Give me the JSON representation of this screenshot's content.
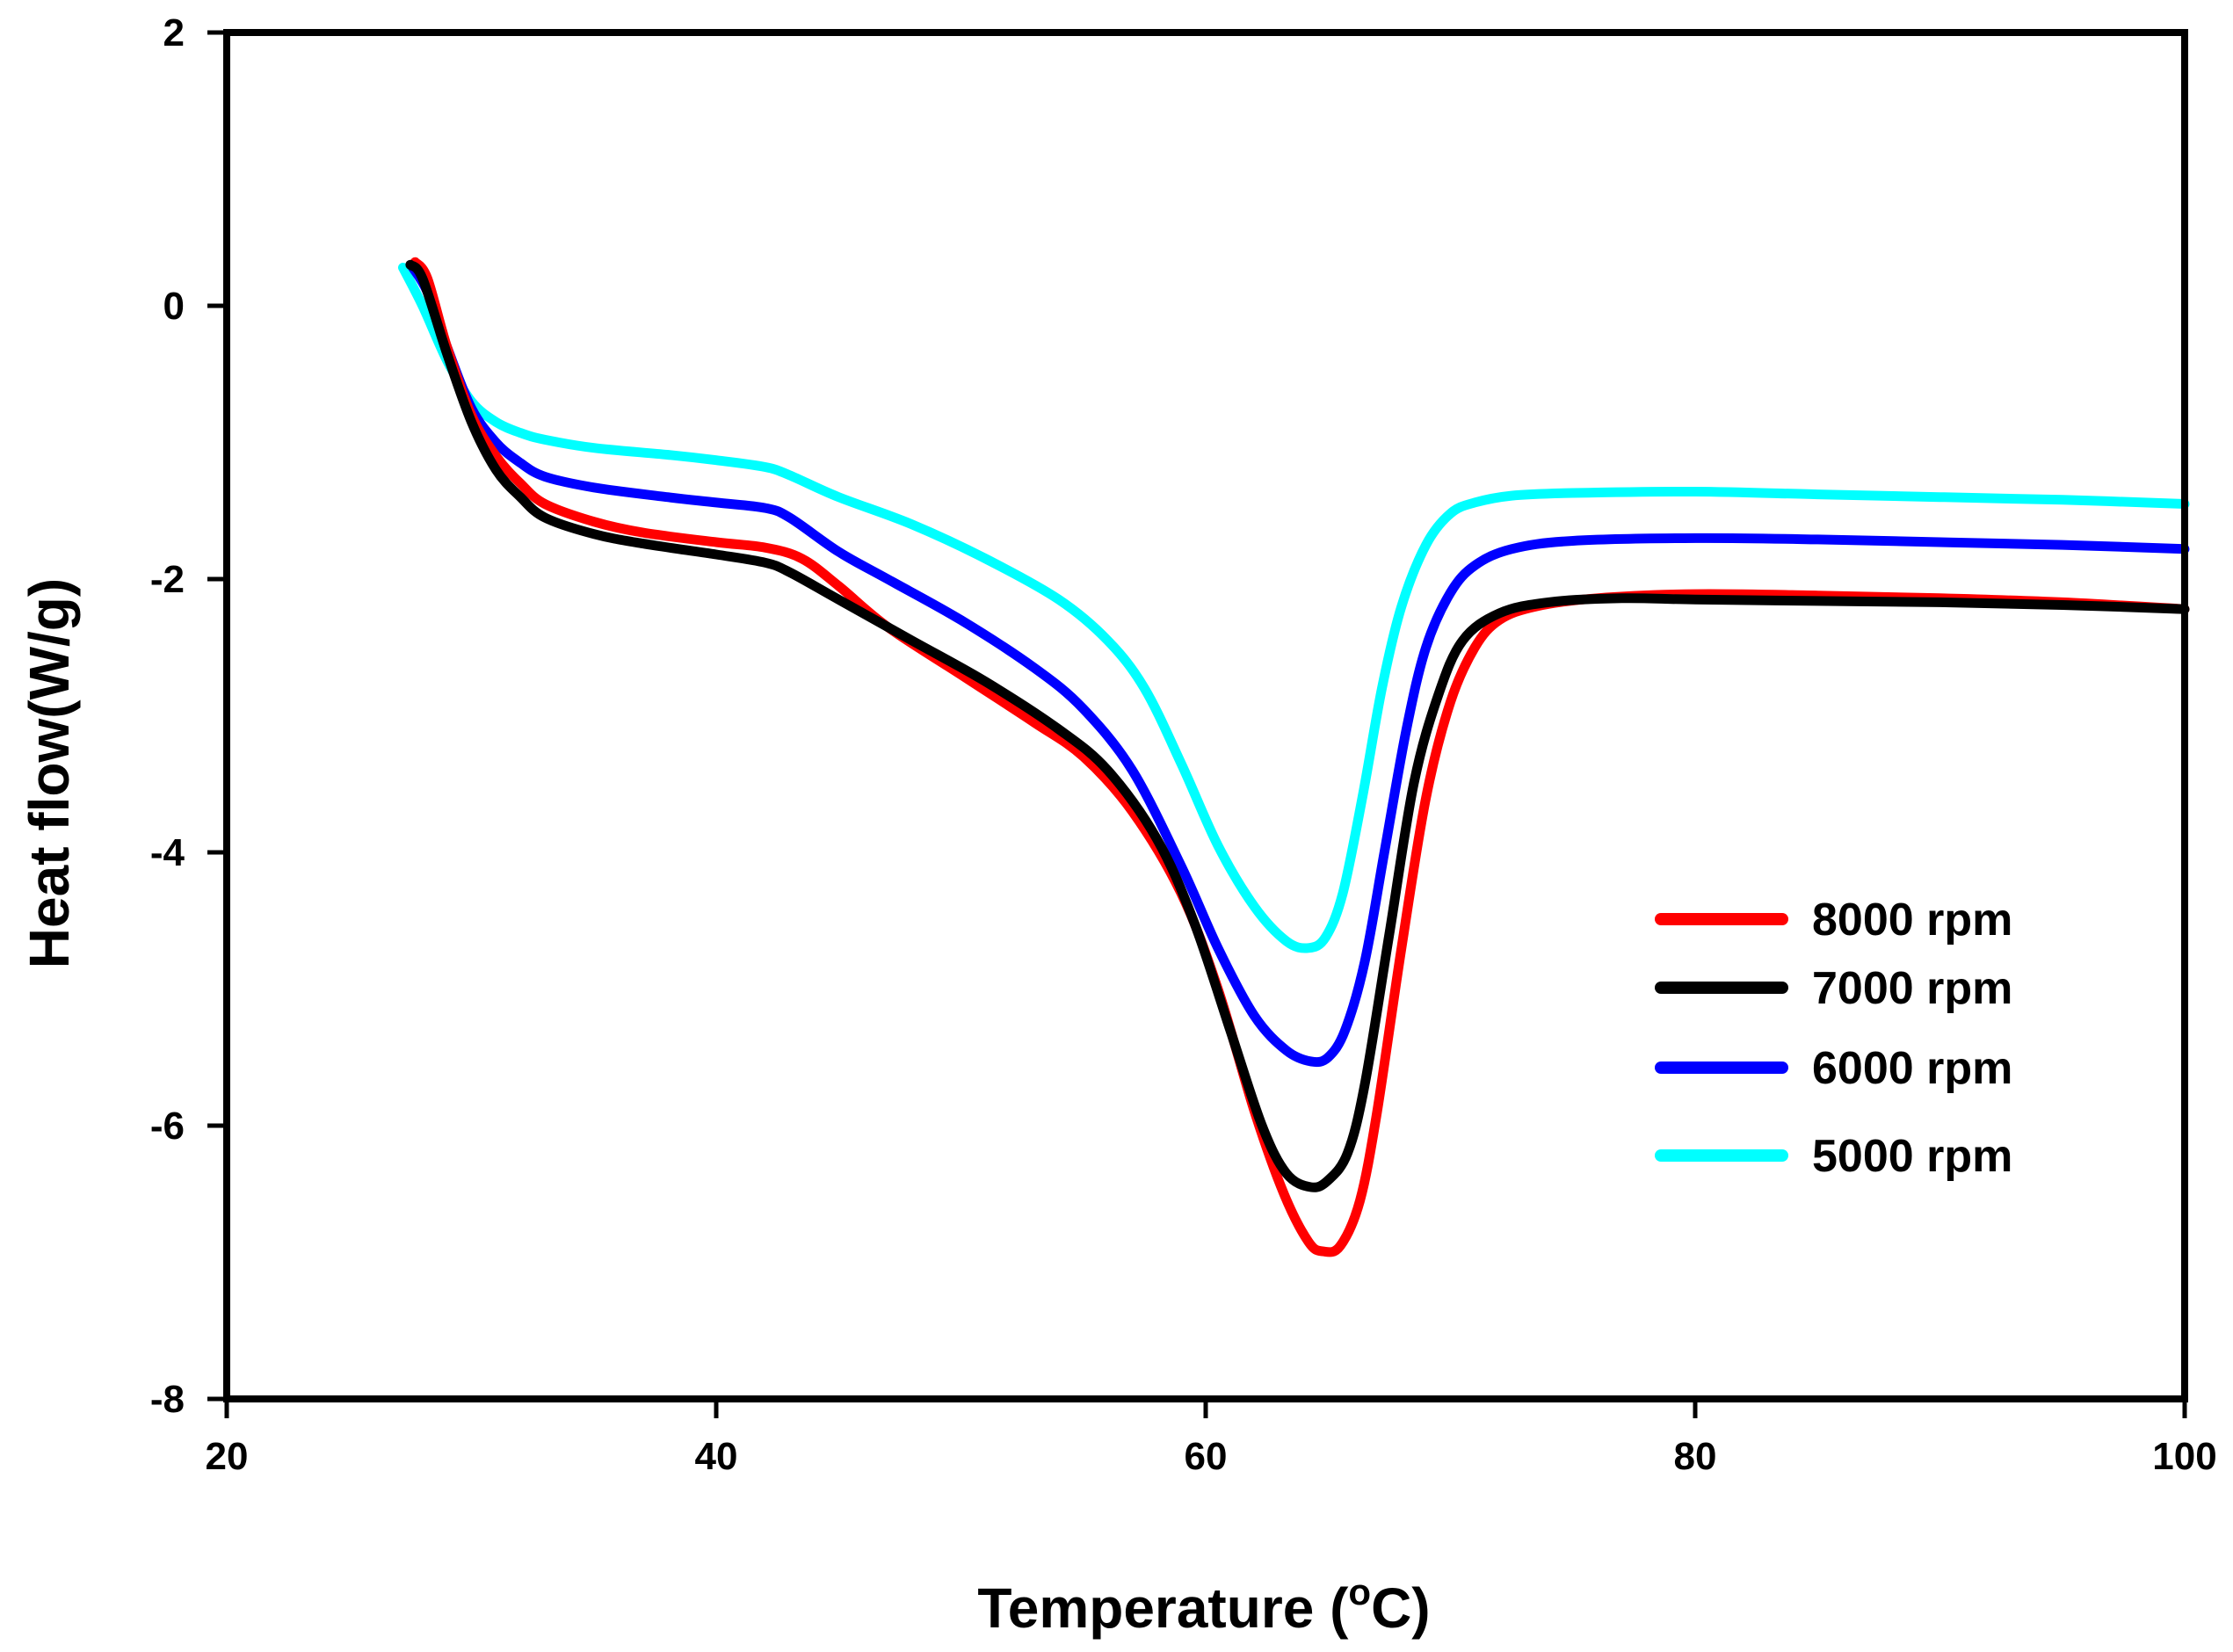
{
  "chart_data": {
    "type": "line",
    "title": "",
    "xlabel": "Temperature (",
    "xlabel_superscript": "o",
    "xlabel_suffix": "C)",
    "ylabel": "Heat flow(W/g)",
    "xlim": [
      20,
      100
    ],
    "ylim": [
      -8,
      2
    ],
    "xticks": [
      20,
      40,
      60,
      80,
      100
    ],
    "xtick_labels": [
      "20",
      "40",
      "60",
      "80",
      "100"
    ],
    "yticks": [
      -8,
      -6,
      -4,
      -2,
      0,
      2
    ],
    "ytick_labels": [
      "-8",
      "-6",
      "-4",
      "-2",
      "0",
      "2"
    ],
    "grid": false,
    "legend_position": "right-lower",
    "series": [
      {
        "name": "8000 rpm",
        "color": "#ff0000",
        "points": [
          [
            27.7,
            0.32
          ],
          [
            28.2,
            0.2
          ],
          [
            29,
            -0.3
          ],
          [
            30,
            -0.8
          ],
          [
            31,
            -1.1
          ],
          [
            32,
            -1.3
          ],
          [
            33,
            -1.45
          ],
          [
            35,
            -1.58
          ],
          [
            37,
            -1.66
          ],
          [
            40,
            -1.73
          ],
          [
            42,
            -1.77
          ],
          [
            43.5,
            -1.85
          ],
          [
            45,
            -2.05
          ],
          [
            47,
            -2.35
          ],
          [
            50,
            -2.7
          ],
          [
            53,
            -3.05
          ],
          [
            55,
            -3.3
          ],
          [
            57,
            -3.7
          ],
          [
            59,
            -4.3
          ],
          [
            60.5,
            -5.0
          ],
          [
            62,
            -5.9
          ],
          [
            63.2,
            -6.5
          ],
          [
            64.2,
            -6.85
          ],
          [
            64.8,
            -6.92
          ],
          [
            65.5,
            -6.88
          ],
          [
            66.3,
            -6.55
          ],
          [
            67,
            -5.9
          ],
          [
            68,
            -4.7
          ],
          [
            69,
            -3.6
          ],
          [
            70,
            -2.9
          ],
          [
            71,
            -2.5
          ],
          [
            72,
            -2.3
          ],
          [
            73.5,
            -2.2
          ],
          [
            76,
            -2.14
          ],
          [
            80,
            -2.11
          ],
          [
            85,
            -2.12
          ],
          [
            90,
            -2.14
          ],
          [
            95,
            -2.17
          ],
          [
            100,
            -2.22
          ]
        ]
      },
      {
        "name": "7000 rpm",
        "color": "#000000",
        "points": [
          [
            27.5,
            0.3
          ],
          [
            28,
            0.2
          ],
          [
            29,
            -0.35
          ],
          [
            30,
            -0.85
          ],
          [
            31,
            -1.2
          ],
          [
            32,
            -1.4
          ],
          [
            33,
            -1.55
          ],
          [
            35,
            -1.67
          ],
          [
            37,
            -1.74
          ],
          [
            40,
            -1.82
          ],
          [
            42,
            -1.88
          ],
          [
            43,
            -1.95
          ],
          [
            45,
            -2.15
          ],
          [
            48,
            -2.45
          ],
          [
            51,
            -2.75
          ],
          [
            54,
            -3.1
          ],
          [
            56,
            -3.4
          ],
          [
            58,
            -3.9
          ],
          [
            59.5,
            -4.5
          ],
          [
            61,
            -5.3
          ],
          [
            62.3,
            -6.0
          ],
          [
            63.3,
            -6.35
          ],
          [
            64.3,
            -6.45
          ],
          [
            65,
            -6.4
          ],
          [
            65.8,
            -6.2
          ],
          [
            66.5,
            -5.7
          ],
          [
            67.5,
            -4.6
          ],
          [
            68.5,
            -3.5
          ],
          [
            69.5,
            -2.85
          ],
          [
            70.5,
            -2.45
          ],
          [
            72,
            -2.25
          ],
          [
            74,
            -2.17
          ],
          [
            77,
            -2.14
          ],
          [
            80,
            -2.15
          ],
          [
            85,
            -2.16
          ],
          [
            90,
            -2.17
          ],
          [
            95,
            -2.19
          ],
          [
            100,
            -2.22
          ]
        ]
      },
      {
        "name": "6000 rpm",
        "color": "#0000ff",
        "points": [
          [
            27.6,
            0.28
          ],
          [
            28.2,
            0.1
          ],
          [
            29,
            -0.3
          ],
          [
            30,
            -0.75
          ],
          [
            31,
            -1.0
          ],
          [
            32,
            -1.15
          ],
          [
            33,
            -1.25
          ],
          [
            35,
            -1.33
          ],
          [
            38,
            -1.4
          ],
          [
            40,
            -1.44
          ],
          [
            42,
            -1.48
          ],
          [
            43,
            -1.55
          ],
          [
            45,
            -1.8
          ],
          [
            47,
            -2.0
          ],
          [
            50,
            -2.3
          ],
          [
            53,
            -2.65
          ],
          [
            55,
            -2.95
          ],
          [
            57,
            -3.4
          ],
          [
            59,
            -4.1
          ],
          [
            60.5,
            -4.7
          ],
          [
            62,
            -5.2
          ],
          [
            63.3,
            -5.45
          ],
          [
            64.3,
            -5.53
          ],
          [
            65,
            -5.5
          ],
          [
            65.7,
            -5.3
          ],
          [
            66.5,
            -4.8
          ],
          [
            67.3,
            -4.0
          ],
          [
            68.2,
            -3.1
          ],
          [
            69,
            -2.5
          ],
          [
            70,
            -2.1
          ],
          [
            71,
            -1.9
          ],
          [
            72.5,
            -1.78
          ],
          [
            75,
            -1.72
          ],
          [
            80,
            -1.7
          ],
          [
            85,
            -1.71
          ],
          [
            90,
            -1.73
          ],
          [
            95,
            -1.75
          ],
          [
            100,
            -1.78
          ]
        ]
      },
      {
        "name": "5000 rpm",
        "color": "#00ffff",
        "points": [
          [
            27.2,
            0.28
          ],
          [
            28,
            0.0
          ],
          [
            29,
            -0.4
          ],
          [
            30,
            -0.7
          ],
          [
            31,
            -0.85
          ],
          [
            32,
            -0.93
          ],
          [
            33,
            -0.98
          ],
          [
            35,
            -1.04
          ],
          [
            38,
            -1.09
          ],
          [
            40,
            -1.13
          ],
          [
            42,
            -1.18
          ],
          [
            43,
            -1.24
          ],
          [
            45,
            -1.4
          ],
          [
            48,
            -1.6
          ],
          [
            51,
            -1.85
          ],
          [
            54,
            -2.15
          ],
          [
            56,
            -2.45
          ],
          [
            57.5,
            -2.8
          ],
          [
            59,
            -3.35
          ],
          [
            60.5,
            -3.95
          ],
          [
            62,
            -4.4
          ],
          [
            63.3,
            -4.65
          ],
          [
            64.2,
            -4.7
          ],
          [
            64.9,
            -4.62
          ],
          [
            65.6,
            -4.3
          ],
          [
            66.4,
            -3.6
          ],
          [
            67.2,
            -2.8
          ],
          [
            68,
            -2.2
          ],
          [
            69,
            -1.75
          ],
          [
            70,
            -1.52
          ],
          [
            71,
            -1.44
          ],
          [
            72.5,
            -1.39
          ],
          [
            75,
            -1.37
          ],
          [
            80,
            -1.36
          ],
          [
            85,
            -1.38
          ],
          [
            90,
            -1.4
          ],
          [
            95,
            -1.42
          ],
          [
            100,
            -1.45
          ]
        ]
      }
    ]
  }
}
